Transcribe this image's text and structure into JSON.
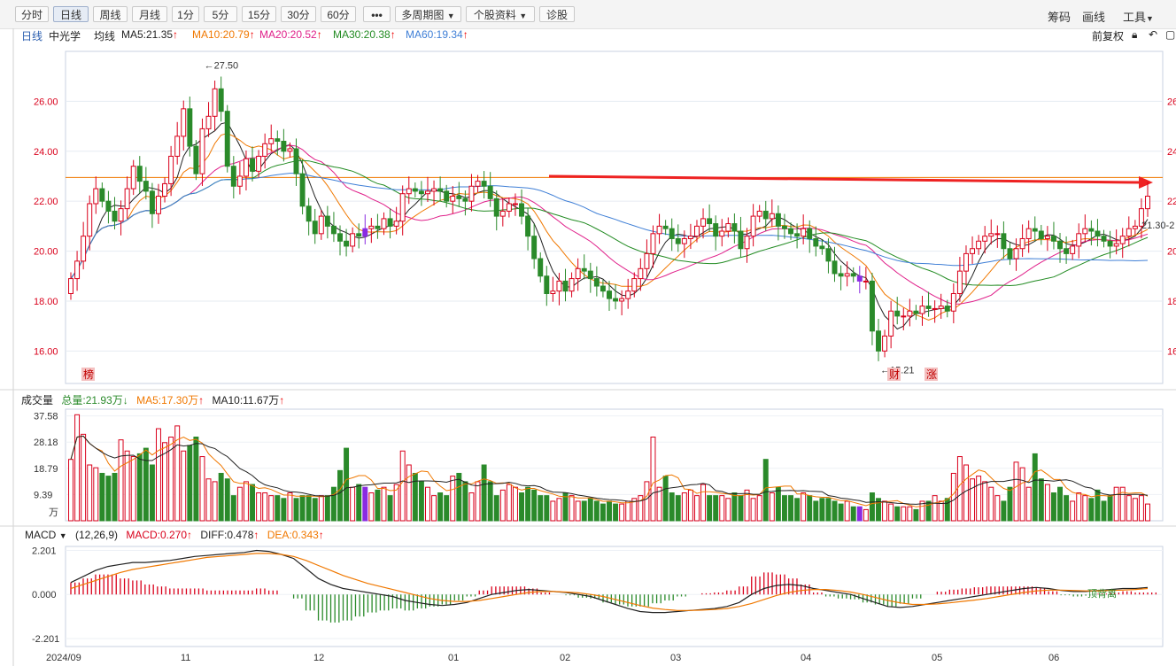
{
  "toolbar": {
    "tabs": [
      "分时",
      "日线",
      "周线",
      "月线",
      "1分",
      "5分",
      "15分",
      "30分",
      "60分"
    ],
    "active_tab": "日线",
    "more_label": "•••",
    "multi_period": "多周期图",
    "stock_info": "个股资料",
    "diagnose": "诊股",
    "right_items": [
      "筹码",
      "画线",
      "工具"
    ]
  },
  "ma_bar": {
    "period": "日线",
    "name": "中光学",
    "avg_label": "均线",
    "ma5": "MA5:21.35",
    "ma10": "MA10:20.79",
    "ma20": "MA20:20.52",
    "ma30": "MA30:20.38",
    "ma60": "MA60:19.34",
    "adjust": "前复权"
  },
  "volume_bar": {
    "title": "成交量",
    "total": "总量:21.93万",
    "ma5": "MA5:17.30万",
    "ma10": "MA10:11.67万"
  },
  "macd_bar": {
    "title": "MACD",
    "params": "(12,26,9)",
    "macd": "MACD:0.270",
    "diff": "DIFF:0.478",
    "dea": "DEA:0.343"
  },
  "colors": {
    "up": "#d9001b",
    "down": "#2a8a2a",
    "ma5": "#222222",
    "ma10": "#f07800",
    "ma20": "#e0208a",
    "ma30": "#228b22",
    "ma60": "#3f7fd6",
    "special": "#8a2be2"
  },
  "chart_data": {
    "type": "candlestick",
    "price_axis": {
      "ticks": [
        "26.00",
        "24.00",
        "22.00",
        "20.00",
        "18.00",
        "16.00"
      ],
      "range": [
        14.7,
        28.0
      ]
    },
    "volume_axis": {
      "ticks": [
        "37.58",
        "28.18",
        "18.79",
        "9.39"
      ],
      "unit": "万",
      "range": [
        0,
        40
      ]
    },
    "macd_axis": {
      "ticks": [
        "2.201",
        "0.000",
        "-2.201"
      ],
      "range": [
        -2.6,
        2.4
      ]
    },
    "x_ticks": [
      "2024/09",
      "11",
      "12",
      "01",
      "02",
      "03",
      "04",
      "05",
      "06"
    ],
    "high_annotation": "←27.50",
    "low_annotation": "←15.21",
    "last_price_label": "21.30-2",
    "markers": [
      "榜",
      "财",
      "涨"
    ],
    "macd_annotation": "顶背离",
    "candles": {
      "open": [
        18.3,
        18.9,
        19.6,
        20.6,
        21.9,
        22.5,
        22.0,
        21.6,
        21.2,
        21.7,
        22.5,
        23.4,
        22.8,
        22.4,
        21.5,
        22.2,
        22.7,
        23.8,
        24.6,
        25.7,
        24.2,
        23.1,
        24.9,
        25.4,
        26.5,
        25.6,
        23.4,
        22.6,
        23.0,
        23.7,
        23.2,
        23.8,
        24.3,
        24.5,
        24.4,
        24.0,
        24.1,
        23.1,
        21.8,
        21.2,
        20.7,
        21.4,
        21.0,
        20.7,
        20.4,
        20.2,
        20.7,
        20.6,
        20.9,
        21.0,
        20.9,
        21.3,
        21.0,
        21.2,
        22.3,
        22.5,
        22.4,
        22.3,
        22.4,
        22.5,
        22.4,
        22.0,
        22.2,
        22.1,
        22.0,
        22.6,
        22.8,
        22.6,
        22.1,
        21.4,
        21.6,
        21.9,
        21.9,
        21.4,
        20.6,
        19.7,
        19.0,
        18.3,
        18.4,
        18.8,
        18.4,
        18.9,
        19.3,
        19.2,
        18.9,
        18.6,
        18.4,
        18.1,
        18.0,
        18.1,
        18.4,
        18.9,
        19.3,
        19.9,
        20.7,
        21.0,
        20.9,
        20.5,
        20.3,
        20.5,
        20.6,
        21.0,
        21.3,
        21.1,
        20.6,
        20.8,
        21.1,
        20.8,
        20.1,
        20.6,
        21.4,
        21.6,
        21.3,
        21.5,
        21.0,
        20.9,
        20.7,
        20.6,
        20.9,
        20.5,
        20.2,
        20.1,
        19.6,
        19.1,
        19.0,
        19.1,
        19.0,
        18.8,
        18.8,
        16.8,
        16.0,
        16.6,
        17.6,
        17.4,
        17.4,
        17.6,
        17.5,
        17.8,
        17.7,
        17.7,
        17.8,
        17.6,
        18.3,
        19.2,
        19.9,
        20.1,
        20.4,
        20.6,
        20.7,
        20.7,
        20.1,
        19.7,
        20.1,
        20.5,
        20.9,
        20.8,
        20.5,
        20.6,
        20.4,
        20.1,
        19.9,
        20.2,
        20.7,
        20.9,
        20.8,
        20.6,
        20.4,
        20.2,
        20.3,
        20.6,
        20.9,
        21.0,
        21.7
      ],
      "close": [
        18.9,
        19.6,
        20.6,
        21.9,
        22.5,
        22.0,
        21.6,
        21.2,
        21.7,
        22.5,
        23.4,
        22.8,
        22.4,
        21.5,
        22.2,
        22.7,
        23.8,
        24.6,
        25.7,
        24.2,
        23.1,
        24.9,
        25.4,
        26.5,
        25.6,
        23.4,
        22.6,
        23.0,
        23.7,
        23.2,
        23.8,
        24.3,
        24.5,
        24.4,
        24.0,
        24.1,
        23.1,
        21.8,
        21.2,
        20.7,
        21.4,
        21.0,
        20.7,
        20.4,
        20.2,
        20.7,
        20.6,
        20.9,
        21.0,
        20.9,
        21.3,
        21.0,
        21.2,
        22.3,
        22.5,
        22.4,
        22.3,
        22.4,
        22.5,
        22.4,
        22.0,
        22.2,
        22.1,
        22.0,
        22.6,
        22.8,
        22.6,
        22.1,
        21.4,
        21.6,
        21.9,
        21.9,
        21.4,
        20.6,
        19.7,
        19.0,
        18.3,
        18.4,
        18.8,
        18.4,
        18.9,
        19.3,
        19.2,
        18.9,
        18.6,
        18.4,
        18.1,
        18.0,
        18.1,
        18.4,
        18.9,
        19.3,
        19.9,
        20.7,
        21.0,
        20.9,
        20.5,
        20.3,
        20.5,
        20.6,
        21.0,
        21.3,
        21.1,
        20.6,
        20.8,
        21.1,
        20.8,
        20.1,
        20.6,
        21.4,
        21.6,
        21.3,
        21.5,
        21.0,
        20.9,
        20.7,
        20.6,
        20.9,
        20.5,
        20.2,
        20.1,
        19.6,
        19.1,
        19.0,
        19.1,
        19.0,
        18.8,
        18.8,
        16.8,
        16.0,
        16.6,
        17.6,
        17.4,
        17.4,
        17.6,
        17.5,
        17.8,
        17.7,
        17.7,
        17.8,
        17.6,
        18.3,
        19.2,
        19.9,
        20.1,
        20.4,
        20.6,
        20.7,
        20.7,
        20.1,
        19.7,
        20.1,
        20.5,
        20.9,
        20.8,
        20.5,
        20.6,
        20.4,
        20.1,
        19.9,
        20.2,
        20.7,
        20.9,
        20.8,
        20.6,
        20.4,
        20.2,
        20.3,
        20.6,
        20.9,
        21.0,
        21.7,
        22.2
      ],
      "special_candles": [
        47,
        126
      ]
    },
    "volume_values": [
      22,
      38,
      31,
      20,
      19,
      17,
      16,
      17,
      29,
      25,
      23,
      24,
      26,
      20,
      33,
      28,
      30,
      34,
      25,
      27,
      30,
      23,
      15,
      14,
      17,
      15,
      9,
      12,
      14,
      13,
      10,
      10,
      9,
      9,
      8,
      10,
      8,
      9,
      9,
      8,
      9,
      9,
      12,
      18,
      26,
      12,
      13,
      12,
      10,
      11,
      12,
      9,
      13,
      25,
      20,
      17,
      14,
      12,
      9,
      10,
      9,
      16,
      17,
      14,
      10,
      14,
      20,
      14,
      9,
      11,
      13,
      12,
      10,
      12,
      11,
      9,
      9,
      7,
      8,
      10,
      9,
      7,
      7,
      8,
      7,
      6,
      7,
      6,
      6,
      7,
      8,
      9,
      14,
      30,
      12,
      16,
      10,
      9,
      10,
      11,
      9,
      13,
      9,
      9,
      9,
      8,
      10,
      9,
      11,
      8,
      9,
      22,
      10,
      12,
      9,
      9,
      8,
      10,
      9,
      7,
      8,
      8,
      7,
      6,
      7,
      5,
      5,
      4,
      10,
      8,
      7,
      6,
      5,
      5,
      5,
      4,
      7,
      7,
      9,
      7,
      8,
      17,
      23,
      20,
      15,
      16,
      14,
      12,
      9,
      7,
      12,
      21,
      19,
      12,
      24,
      15,
      13,
      10,
      12,
      9,
      7,
      10,
      9,
      8,
      11,
      7,
      9,
      12,
      12,
      9,
      8,
      9,
      6,
      6,
      26,
      14,
      9,
      26,
      22
    ],
    "macd_values": {
      "diff": [
        0.6,
        0.9,
        1.2,
        1.4,
        1.5,
        1.6,
        1.6,
        1.65,
        1.7,
        1.8,
        1.9,
        1.95,
        2.0,
        2.05,
        2.1,
        2.2,
        2.15,
        2.0,
        1.8,
        1.3,
        0.8,
        0.5,
        0.3,
        0.2,
        0.1,
        0.0,
        -0.1,
        -0.3,
        -0.4,
        -0.5,
        -0.55,
        -0.5,
        -0.4,
        -0.2,
        0.0,
        0.1,
        0.2,
        0.25,
        0.2,
        0.15,
        0.1,
        0.0,
        -0.1,
        -0.3,
        -0.5,
        -0.7,
        -0.85,
        -0.9,
        -0.9,
        -0.85,
        -0.8,
        -0.75,
        -0.7,
        -0.6,
        -0.4,
        0.0,
        0.3,
        0.45,
        0.5,
        0.45,
        0.3,
        0.2,
        0.1,
        0.0,
        -0.2,
        -0.4,
        -0.6,
        -0.65,
        -0.6,
        -0.5,
        -0.4,
        -0.3,
        -0.2,
        -0.1,
        0.0,
        0.1,
        0.2,
        0.3,
        0.35,
        0.3,
        0.2,
        0.15,
        0.15,
        0.2,
        0.25,
        0.3,
        0.3,
        0.35
      ],
      "dea": [
        0.3,
        0.5,
        0.7,
        0.9,
        1.1,
        1.25,
        1.35,
        1.45,
        1.55,
        1.65,
        1.75,
        1.85,
        1.9,
        1.95,
        2.0,
        2.05,
        2.05,
        2.0,
        1.9,
        1.7,
        1.45,
        1.2,
        0.95,
        0.75,
        0.55,
        0.4,
        0.25,
        0.1,
        -0.05,
        -0.2,
        -0.3,
        -0.35,
        -0.35,
        -0.3,
        -0.2,
        -0.1,
        0.0,
        0.1,
        0.15,
        0.15,
        0.12,
        0.08,
        0.0,
        -0.1,
        -0.25,
        -0.4,
        -0.55,
        -0.68,
        -0.75,
        -0.8,
        -0.8,
        -0.78,
        -0.75,
        -0.7,
        -0.6,
        -0.45,
        -0.25,
        -0.05,
        0.1,
        0.2,
        0.25,
        0.25,
        0.2,
        0.12,
        0.0,
        -0.15,
        -0.3,
        -0.42,
        -0.5,
        -0.5,
        -0.47,
        -0.42,
        -0.35,
        -0.28,
        -0.2,
        -0.1,
        0.0,
        0.1,
        0.18,
        0.22,
        0.22,
        0.2,
        0.18,
        0.18,
        0.2,
        0.22,
        0.25,
        0.3
      ]
    }
  }
}
